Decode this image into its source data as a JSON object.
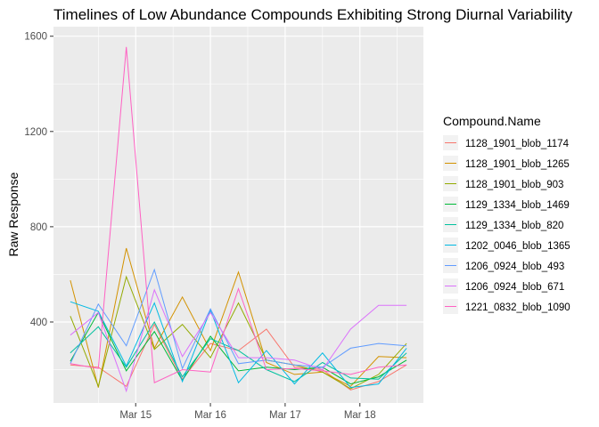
{
  "chart_data": {
    "type": "line",
    "title": "Timelines of Low Abundance Compounds Exhibiting Strong Diurnal Variability",
    "xlabel": "",
    "ylabel": "Raw Response",
    "x_ticks": [
      "Mar 15",
      "Mar 16",
      "Mar 17",
      "Mar 18"
    ],
    "y_ticks": [
      400,
      800,
      1200,
      1600
    ],
    "ylim": [
      60,
      1640
    ],
    "grid": true,
    "legend_title": "Compound.Name",
    "legend_position": "right",
    "x": [
      "Mar 14 03:00",
      "Mar 14 12:00",
      "Mar 14 21:00",
      "Mar 15 06:00",
      "Mar 15 15:00",
      "Mar 16 00:00",
      "Mar 16 09:00",
      "Mar 16 18:00",
      "Mar 17 03:00",
      "Mar 17 12:00",
      "Mar 17 21:00",
      "Mar 18 06:00",
      "Mar 18 15:00"
    ],
    "series": [
      {
        "name": "1128_1901_blob_1174",
        "color": "#F8766D",
        "values": [
          220,
          210,
          130,
          390,
          160,
          310,
          280,
          370,
          210,
          200,
          115,
          150,
          220
        ]
      },
      {
        "name": "1128_1901_blob_1265",
        "color": "#D39200",
        "values": [
          575,
          125,
          710,
          290,
          505,
          280,
          610,
          230,
          180,
          190,
          130,
          255,
          250
        ]
      },
      {
        "name": "1128_1901_blob_903",
        "color": "#93AA00",
        "values": [
          425,
          130,
          590,
          285,
          390,
          250,
          480,
          240,
          220,
          190,
          120,
          180,
          310
        ]
      },
      {
        "name": "1129_1334_blob_1469",
        "color": "#00BA38",
        "values": [
          235,
          440,
          195,
          360,
          155,
          340,
          195,
          210,
          200,
          210,
          140,
          170,
          240
        ]
      },
      {
        "name": "1129_1334_blob_820",
        "color": "#00C19F",
        "values": [
          270,
          380,
          210,
          400,
          170,
          330,
          280,
          200,
          150,
          230,
          165,
          160,
          270
        ]
      },
      {
        "name": "1202_0046_blob_1365",
        "color": "#00B9E3",
        "values": [
          485,
          445,
          215,
          480,
          150,
          450,
          145,
          280,
          140,
          270,
          125,
          140,
          290
        ]
      },
      {
        "name": "1206_0924_blob_493",
        "color": "#619CFF",
        "values": [
          225,
          475,
          300,
          620,
          205,
          455,
          225,
          240,
          220,
          210,
          290,
          310,
          300
        ]
      },
      {
        "name": "1206_0924_blob_671",
        "color": "#DB72FB",
        "values": [
          345,
          440,
          110,
          535,
          255,
          440,
          250,
          250,
          240,
          200,
          370,
          470,
          470
        ]
      },
      {
        "name": "1221_0832_blob_1090",
        "color": "#FF61C3",
        "values": [
          225,
          205,
          1555,
          145,
          200,
          190,
          540,
          200,
          205,
          195,
          180,
          210,
          220
        ]
      }
    ]
  }
}
